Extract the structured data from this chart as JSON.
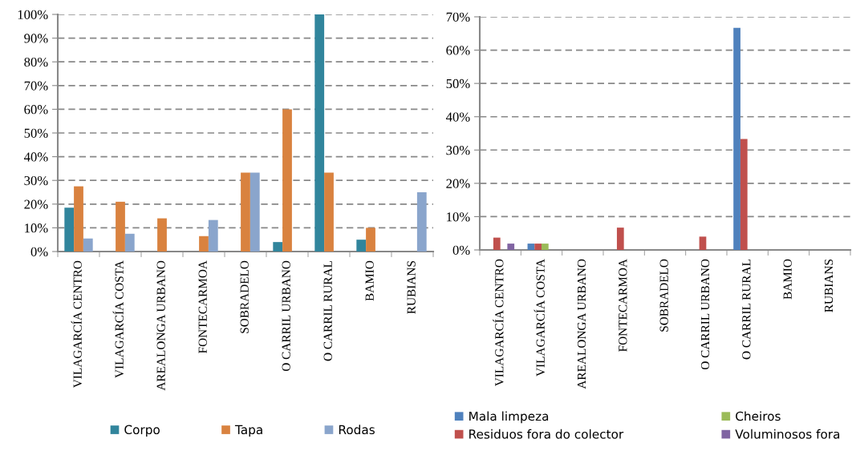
{
  "chart_data": [
    {
      "type": "bar",
      "categories": [
        "VILAGARCÍA CENTRO",
        "VILAGARCÍA COSTA",
        "AREALONGA URBANO",
        "FONTECARMOA",
        "SOBRADELO",
        "O CARRIL URBANO",
        "O CARRIL RURAL",
        "BAMIO",
        "RUBIANS"
      ],
      "series": [
        {
          "name": "Corpo",
          "color": "#31859c",
          "values": [
            18.5,
            0,
            0,
            0,
            0,
            4,
            100,
            5,
            0
          ]
        },
        {
          "name": "Tapa",
          "color": "#d9823f",
          "values": [
            27.5,
            21,
            14,
            6.5,
            33.3,
            60,
            33.3,
            10,
            0
          ]
        },
        {
          "name": "Rodas",
          "color": "#8aa5cc",
          "values": [
            5.5,
            7.5,
            0,
            13.3,
            33.3,
            0,
            0,
            0,
            25
          ]
        }
      ],
      "ylim": [
        0,
        100
      ],
      "yticks": [
        {
          "value": 0,
          "label": "0%"
        },
        {
          "value": 10,
          "label": "10%"
        },
        {
          "value": 20,
          "label": "20%"
        },
        {
          "value": 30,
          "label": "30%"
        },
        {
          "value": 40,
          "label": "40%"
        },
        {
          "value": 50,
          "label": "50%"
        },
        {
          "value": 60,
          "label": "60%"
        },
        {
          "value": 70,
          "label": "70%"
        },
        {
          "value": 80,
          "label": "80%"
        },
        {
          "value": 90,
          "label": "90%"
        },
        {
          "value": 100,
          "label": "100%"
        }
      ],
      "grid": "y",
      "legend": "bottom"
    },
    {
      "type": "bar",
      "categories": [
        "VILAGARCÍA CENTRO",
        "VILAGARCÍA COSTA",
        "AREALONGA URBANO",
        "FONTECARMOA",
        "SOBRADELO",
        "O CARRIL URBANO",
        "O CARRIL RURAL",
        "BAMIO",
        "RUBIANS"
      ],
      "series": [
        {
          "name": "Mala limpeza",
          "color": "#4f81bd",
          "values": [
            0,
            1.9,
            0,
            0,
            0,
            0,
            66.7,
            0,
            0
          ]
        },
        {
          "name": "Residuos fora do colector",
          "color": "#c0504d",
          "values": [
            3.7,
            1.9,
            0,
            6.7,
            0,
            4,
            33.3,
            0,
            0
          ]
        },
        {
          "name": "Cheiros",
          "color": "#9bbb59",
          "values": [
            0,
            1.9,
            0,
            0,
            0,
            0,
            0,
            0,
            0
          ]
        },
        {
          "name": "Voluminosos fora",
          "color": "#8064a2",
          "values": [
            1.9,
            0,
            0,
            0,
            0,
            0,
            0,
            0,
            0
          ]
        }
      ],
      "ylim": [
        0,
        70
      ],
      "yticks": [
        {
          "value": 0,
          "label": "0%"
        },
        {
          "value": 10,
          "label": "10%"
        },
        {
          "value": 20,
          "label": "20%"
        },
        {
          "value": 30,
          "label": "30%"
        },
        {
          "value": 40,
          "label": "40%"
        },
        {
          "value": 50,
          "label": "50%"
        },
        {
          "value": 60,
          "label": "60%"
        },
        {
          "value": 70,
          "label": "70%"
        }
      ],
      "grid": "y",
      "legend": "bottom"
    }
  ]
}
